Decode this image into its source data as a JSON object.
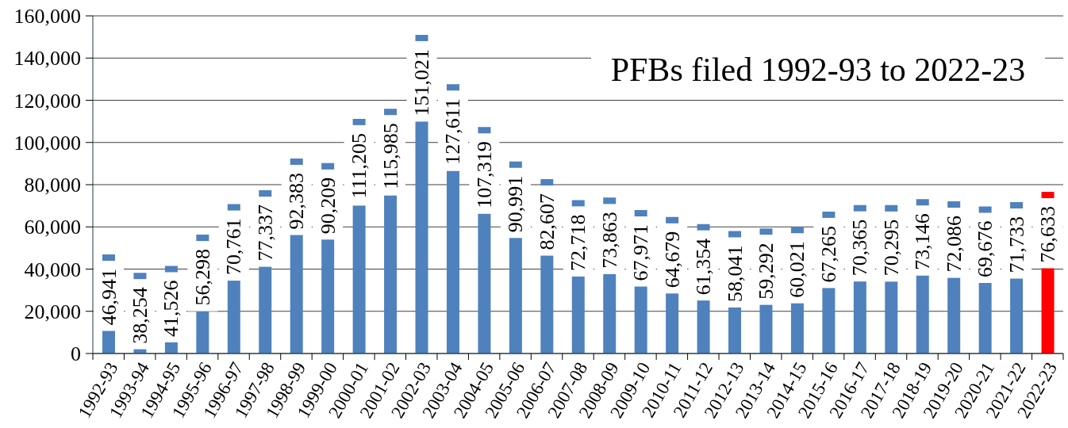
{
  "chart_data": {
    "type": "bar",
    "title": "PFBs filed 1992-93 to 2022-23",
    "categories": [
      "1992-93",
      "1993-94",
      "1994-95",
      "1995-96",
      "1996-97",
      "1997-98",
      "1998-99",
      "1999-00",
      "2000-01",
      "2001-02",
      "2002-03",
      "2003-04",
      "2004-05",
      "2005-06",
      "2006-07",
      "2007-08",
      "2008-09",
      "2009-10",
      "2010-11",
      "2011-12",
      "2012-13",
      "2013-14",
      "2014-15",
      "2015-16",
      "2016-17",
      "2017-18",
      "2018-19",
      "2019-20",
      "2020-21",
      "2021-22",
      "2022-23"
    ],
    "values": [
      46941,
      38254,
      41526,
      56298,
      70761,
      77337,
      92383,
      90209,
      111205,
      115985,
      151021,
      127611,
      107319,
      90991,
      82607,
      72718,
      73863,
      67971,
      64679,
      61354,
      58041,
      59292,
      60021,
      67265,
      70365,
      70295,
      73146,
      72086,
      69676,
      71733,
      76633
    ],
    "value_labels": [
      "46,941",
      "38,254",
      "41,526",
      "56,298",
      "70,761",
      "77,337",
      "92,383",
      "90,209",
      "111,205",
      "115,985",
      "151,021",
      "127,611",
      "107,319",
      "90,991",
      "82,607",
      "72,718",
      "73,863",
      "67,971",
      "64,679",
      "61,354",
      "58,041",
      "59,292",
      "60,021",
      "67,265",
      "70,365",
      "70,295",
      "73,146",
      "72,086",
      "69,676",
      "71,733",
      "76,633"
    ],
    "colors": [
      "#4f81bd",
      "#4f81bd",
      "#4f81bd",
      "#4f81bd",
      "#4f81bd",
      "#4f81bd",
      "#4f81bd",
      "#4f81bd",
      "#4f81bd",
      "#4f81bd",
      "#4f81bd",
      "#4f81bd",
      "#4f81bd",
      "#4f81bd",
      "#4f81bd",
      "#4f81bd",
      "#4f81bd",
      "#4f81bd",
      "#4f81bd",
      "#4f81bd",
      "#4f81bd",
      "#4f81bd",
      "#4f81bd",
      "#4f81bd",
      "#4f81bd",
      "#4f81bd",
      "#4f81bd",
      "#4f81bd",
      "#4f81bd",
      "#4f81bd",
      "#ff0000"
    ],
    "ylim": [
      0,
      160000
    ],
    "yticks": [
      0,
      {
        "value": 20000,
        "label": "20,000"
      },
      {
        "value": 40000,
        "label": "40,000"
      },
      {
        "value": 60000,
        "label": "60,000"
      },
      {
        "value": 80000,
        "label": "80,000"
      },
      {
        "value": 100000,
        "label": "100,000"
      },
      {
        "value": 120000,
        "label": "120,000"
      },
      {
        "value": 140000,
        "label": "140,000"
      },
      {
        "value": 160000,
        "label": "160,000"
      }
    ],
    "grid": "y"
  }
}
